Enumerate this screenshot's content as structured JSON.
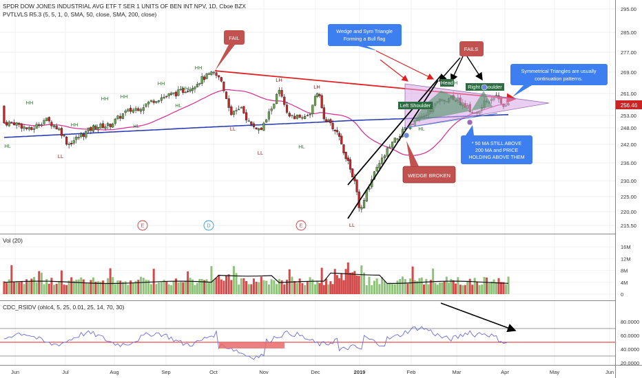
{
  "header": {
    "title": "SPDR DOW JONES INDUSTRIAL AVG ETF T SER 1 UNITS OF BEN INT NPV, 1D, Cboe BZX",
    "indicator": "PVTLVLS R5.3 (5, 5, 1, 0, SMA, 50, close, SMA, 200, close)"
  },
  "chart_data": {
    "type": "candlestick",
    "instrument": "SPDR DOW JONES INDUSTRIAL AVG ETF",
    "timeframe": "1D",
    "last_price": "256.46",
    "price_axis": {
      "ticks": [
        "295.00",
        "285.00",
        "277.00",
        "269.00",
        "261.00",
        "253.00",
        "248.00",
        "242.00",
        "236.00",
        "230.00",
        "225.00",
        "220.00",
        "215.50"
      ],
      "values": [
        295,
        285,
        277,
        269,
        261,
        253,
        248,
        242,
        236,
        230,
        225,
        220,
        215.5
      ]
    },
    "time_axis": {
      "labels": [
        "Jun",
        "Jul",
        "Aug",
        "Sep",
        "Oct",
        "Nov",
        "Dec",
        "2019",
        "Feb",
        "Mar",
        "Apr",
        "May",
        "Jun"
      ]
    },
    "ohlc_approx": [
      {
        "date": "Jun",
        "close": 250
      },
      {
        "date": "Jul",
        "close": 244
      },
      {
        "date": "Aug",
        "close": 251
      },
      {
        "date": "Sep",
        "close": 261
      },
      {
        "date": "Oct",
        "close": 268
      },
      {
        "date": "Nov",
        "close": 252
      },
      {
        "date": "Dec",
        "close": 254
      },
      {
        "date": "Dec-24",
        "close": 219
      },
      {
        "date": "2019",
        "close": 233
      },
      {
        "date": "Feb",
        "close": 252
      },
      {
        "date": "Mar",
        "close": 258
      },
      {
        "date": "Mar-26",
        "close": 256.46
      }
    ],
    "pivot_labels": [
      "HL",
      "HH",
      "LL",
      "HH",
      "HL",
      "HH",
      "HL",
      "HH",
      "HH",
      "HH",
      "HL",
      "HH",
      "LH",
      "LL",
      "LL",
      "LH",
      "HL",
      "LL",
      "HH",
      "HL",
      "HH"
    ],
    "events": [
      "E",
      "D",
      "E"
    ],
    "volume_panel": {
      "title": "Vol (20)",
      "ticks": [
        "16M",
        "12M",
        "8M",
        "4M",
        "0"
      ],
      "values": [
        16,
        12,
        8,
        4,
        0
      ]
    },
    "rsi_panel": {
      "title": "CDC_RSIDV (ohlc4, 5, 25, 0.01, 25, 14, 70, 30)",
      "ticks": [
        "80.0000",
        "60.0000",
        "40.0000",
        "20.0000"
      ],
      "values": [
        80,
        60,
        40,
        20
      ]
    },
    "annotations": [
      {
        "id": "fail",
        "text": "FAIL"
      },
      {
        "id": "wedge",
        "text": "Wedge and Sym Triangle Forming a Bull flag"
      },
      {
        "id": "fails",
        "text": "FAILS"
      },
      {
        "id": "sym",
        "text": "Symmetrical Triangles are usually continuation patterns."
      },
      {
        "id": "wedge_broken",
        "text": "WEDGE BROKEN"
      },
      {
        "id": "ma_note",
        "text": "* 50 MA STILL ABOVE 200 MA and PRICE HOLDING ABOVE THEM"
      },
      {
        "id": "left_shoulder",
        "text": "Left Shoulder"
      },
      {
        "id": "head",
        "text": "Head"
      },
      {
        "id": "right_shoulder",
        "text": "Right Shoulder"
      }
    ],
    "colors": {
      "up": "#6aa84f",
      "down": "#cc2222",
      "ma50": "#d6298d",
      "ma200": "#2a3cb3",
      "trend": "#e02020",
      "rsi": "#6a6ae0",
      "blue_box": "#3d7ff0",
      "red_box": "#c2524f"
    }
  }
}
